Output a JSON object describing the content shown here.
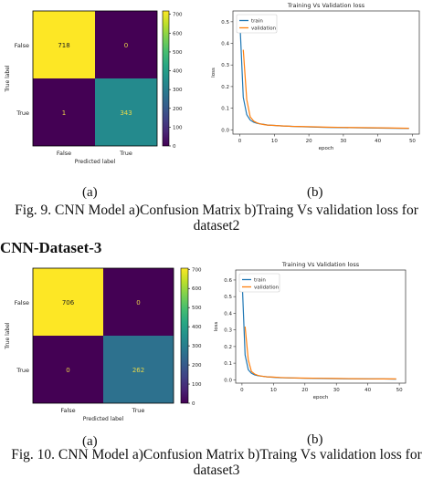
{
  "figures": [
    {
      "cm_label": "(a)",
      "loss_label": "(b)",
      "caption_line1": "Fig. 9.   CNN Model a)Confusion Matrix b)Traing Vs validation loss for",
      "caption_line2": "dataset2"
    },
    {
      "cm_label": "(a)",
      "loss_label": "(b)",
      "caption_line1": "Fig. 10. CNN Model a)Confusion Matrix b)Traing Vs validation loss for",
      "caption_line2": "dataset3"
    }
  ],
  "section_title": "CNN-Dataset-3",
  "chart_data": [
    {
      "type": "heatmap",
      "xlabel": "Predicted label",
      "ylabel": "True label",
      "x_ticklabels": [
        "False",
        "True"
      ],
      "y_ticklabels": [
        "False",
        "True"
      ],
      "values": [
        [
          718,
          0
        ],
        [
          1,
          343
        ]
      ],
      "colorbar_ticks": [
        0,
        100,
        200,
        300,
        400,
        500,
        600,
        700
      ],
      "colormap": "viridis",
      "vmin": 0,
      "vmax": 718
    },
    {
      "type": "line",
      "title": "Training Vs Validation loss",
      "xlabel": "epoch",
      "ylabel": "loss",
      "xlim": [
        -2,
        52
      ],
      "ylim": [
        -0.02,
        0.55
      ],
      "x_ticks": [
        0,
        10,
        20,
        30,
        40,
        50
      ],
      "y_ticks": [
        0.0,
        0.1,
        0.2,
        0.3,
        0.4,
        0.5
      ],
      "legend": "top-left",
      "series": [
        {
          "name": "train",
          "color": "#1f77b4",
          "x": [
            0,
            1,
            2,
            3,
            4,
            5,
            6,
            7,
            8,
            10,
            12,
            15,
            20,
            25,
            30,
            35,
            40,
            45,
            49
          ],
          "y": [
            0.5,
            0.15,
            0.07,
            0.045,
            0.035,
            0.03,
            0.027,
            0.025,
            0.022,
            0.02,
            0.018,
            0.016,
            0.013,
            0.011,
            0.01,
            0.009,
            0.008,
            0.007,
            0.006
          ]
        },
        {
          "name": "validation",
          "color": "#ff7f0e",
          "x": [
            1,
            2,
            3,
            4,
            5,
            6,
            7,
            8,
            10,
            12,
            15,
            20,
            25,
            30,
            35,
            40,
            45,
            49
          ],
          "y": [
            0.37,
            0.14,
            0.06,
            0.04,
            0.032,
            0.027,
            0.024,
            0.022,
            0.02,
            0.018,
            0.016,
            0.014,
            0.012,
            0.011,
            0.01,
            0.009,
            0.008,
            0.007
          ]
        }
      ]
    },
    {
      "type": "heatmap",
      "xlabel": "Predicted label",
      "ylabel": "True label",
      "x_ticklabels": [
        "False",
        "True"
      ],
      "y_ticklabels": [
        "False",
        "True"
      ],
      "values": [
        [
          706,
          0
        ],
        [
          0,
          262
        ]
      ],
      "colorbar_ticks": [
        0,
        100,
        200,
        300,
        400,
        500,
        600,
        700
      ],
      "colormap": "viridis",
      "vmin": 0,
      "vmax": 706
    },
    {
      "type": "line",
      "title": "Training Vs Validation loss",
      "xlabel": "epoch",
      "ylabel": "loss",
      "xlim": [
        -2,
        52
      ],
      "ylim": [
        -0.02,
        0.66
      ],
      "x_ticks": [
        0,
        10,
        20,
        30,
        40,
        50
      ],
      "y_ticks": [
        0.0,
        0.1,
        0.2,
        0.3,
        0.4,
        0.5,
        0.6
      ],
      "legend": "top-left",
      "series": [
        {
          "name": "train",
          "color": "#1f77b4",
          "x": [
            0,
            1,
            2,
            3,
            4,
            5,
            6,
            7,
            8,
            10,
            12,
            15,
            20,
            25,
            30,
            35,
            40,
            45,
            49
          ],
          "y": [
            0.62,
            0.15,
            0.06,
            0.04,
            0.03,
            0.025,
            0.022,
            0.02,
            0.018,
            0.015,
            0.013,
            0.011,
            0.009,
            0.008,
            0.007,
            0.006,
            0.005,
            0.005,
            0.004
          ]
        },
        {
          "name": "validation",
          "color": "#ff7f0e",
          "x": [
            1,
            2,
            3,
            4,
            5,
            6,
            7,
            8,
            10,
            12,
            15,
            20,
            25,
            30,
            35,
            40,
            45,
            49
          ],
          "y": [
            0.32,
            0.12,
            0.05,
            0.035,
            0.027,
            0.023,
            0.02,
            0.018,
            0.016,
            0.014,
            0.012,
            0.01,
            0.009,
            0.008,
            0.007,
            0.006,
            0.005,
            0.005
          ]
        }
      ]
    }
  ]
}
